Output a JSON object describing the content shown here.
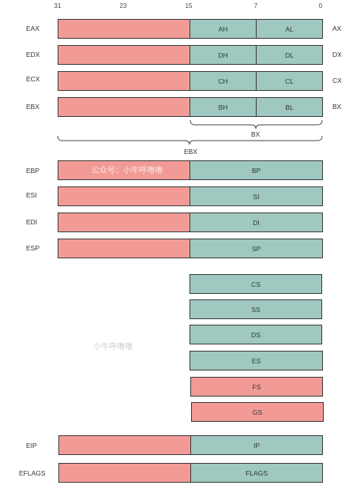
{
  "bit_positions": [
    "31",
    "23",
    "15",
    "7",
    "0"
  ],
  "general_registers": [
    {
      "name": "EAX",
      "high": "AH",
      "low": "AL",
      "short": "AX"
    },
    {
      "name": "EDX",
      "high": "DH",
      "low": "DL",
      "short": "DX"
    },
    {
      "name": "ECX",
      "high": "CH",
      "low": "CL",
      "short": "CX"
    },
    {
      "name": "EBX",
      "high": "BH",
      "low": "BL",
      "short": "BX"
    }
  ],
  "brace_labels": {
    "inner": "BX",
    "outer": "EBX"
  },
  "pointer_registers": [
    {
      "name": "EBP",
      "low": "BP"
    },
    {
      "name": "ESI",
      "low": "SI"
    },
    {
      "name": "EDI",
      "low": "DI"
    },
    {
      "name": "ESP",
      "low": "SP"
    }
  ],
  "segment_registers": [
    {
      "name": "CS",
      "color": "green"
    },
    {
      "name": "SS",
      "color": "green"
    },
    {
      "name": "DS",
      "color": "green"
    },
    {
      "name": "ES",
      "color": "green"
    },
    {
      "name": "FS",
      "color": "red"
    },
    {
      "name": "GS",
      "color": "red"
    }
  ],
  "special_registers": [
    {
      "name": "EIP",
      "low": "IP"
    },
    {
      "name": "EFLAGS",
      "low": "FLAGS"
    }
  ],
  "watermarks": [
    "公众号：小牛呼噜噜",
    "小牛呼噜噜"
  ],
  "colors": {
    "upper_half": "#f29b96",
    "lower_half": "#9ec8c0",
    "border": "#3a3a3a"
  }
}
